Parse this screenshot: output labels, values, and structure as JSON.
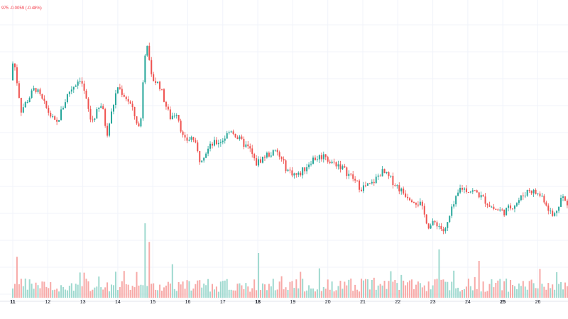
{
  "header": {
    "change_text": "975 -0.0059 (-0.48%)"
  },
  "colors": {
    "up": "#26a69a",
    "down": "#ef5350",
    "volume_up": "#9fd9cf",
    "volume_down": "#f7a9a7",
    "grid": "#f0f3fa",
    "text": "#131722",
    "change": "#f23645"
  },
  "chart_data": {
    "type": "candlestick",
    "title": "",
    "xlabel": "",
    "ylabel": "",
    "x_ticks": [
      "11",
      "12",
      "13",
      "14",
      "15",
      "16",
      "17",
      "18",
      "19",
      "20",
      "21",
      "22",
      "23",
      "24",
      "25",
      "26"
    ],
    "bold_ticks": [
      "11",
      "18",
      "25"
    ],
    "grid": true,
    "price_path_keypoints": [
      [
        0,
        0.7
      ],
      [
        0.08,
        0.85
      ],
      [
        0.3,
        0.5
      ],
      [
        0.7,
        0.65
      ],
      [
        1.05,
        0.5
      ],
      [
        1.3,
        0.4
      ],
      [
        1.65,
        0.62
      ],
      [
        2.0,
        0.72
      ],
      [
        2.3,
        0.42
      ],
      [
        2.6,
        0.54
      ],
      [
        2.75,
        0.34
      ],
      [
        3.05,
        0.66
      ],
      [
        3.4,
        0.55
      ],
      [
        3.7,
        0.36
      ],
      [
        3.82,
        0.87
      ],
      [
        3.9,
        0.95
      ],
      [
        4.0,
        0.72
      ],
      [
        4.25,
        0.67
      ],
      [
        4.45,
        0.52
      ],
      [
        4.55,
        0.45
      ],
      [
        4.75,
        0.49
      ],
      [
        4.95,
        0.29
      ],
      [
        5.2,
        0.32
      ],
      [
        5.4,
        0.17
      ],
      [
        5.75,
        0.27
      ],
      [
        6.05,
        0.3
      ],
      [
        6.3,
        0.37
      ],
      [
        6.5,
        0.31
      ],
      [
        6.85,
        0.23
      ],
      [
        7.0,
        0.14
      ],
      [
        7.3,
        0.2
      ],
      [
        7.6,
        0.22
      ],
      [
        7.9,
        0.1
      ],
      [
        8.2,
        0.06
      ],
      [
        8.4,
        0.11
      ],
      [
        8.6,
        0.17
      ],
      [
        9.0,
        0.2
      ],
      [
        9.1,
        0.15
      ],
      [
        9.35,
        0.14
      ],
      [
        9.75,
        0.05
      ],
      [
        10.0,
        -0.02
      ],
      [
        10.3,
        0.0
      ],
      [
        10.6,
        0.09
      ],
      [
        10.85,
        0.04
      ],
      [
        11.2,
        -0.05
      ],
      [
        11.7,
        -0.13
      ],
      [
        11.95,
        -0.28
      ],
      [
        12.15,
        -0.25
      ],
      [
        12.4,
        -0.32
      ],
      [
        12.6,
        -0.17
      ],
      [
        12.85,
        -0.02
      ],
      [
        13.3,
        -0.05
      ],
      [
        13.8,
        -0.16
      ],
      [
        14.1,
        -0.18
      ],
      [
        14.45,
        -0.12
      ],
      [
        14.8,
        -0.03
      ],
      [
        15.2,
        -0.08
      ],
      [
        15.5,
        -0.22
      ],
      [
        15.75,
        -0.07
      ],
      [
        16.0,
        -0.19
      ]
    ],
    "volume_spikes": [
      {
        "day": 3.8,
        "value": 1.0
      },
      {
        "day": 3.9,
        "value": 0.75
      },
      {
        "day": 7.0,
        "value": 0.6
      },
      {
        "day": 12.2,
        "value": 0.65
      },
      {
        "day": 0.1,
        "value": 0.55
      },
      {
        "day": 4.55,
        "value": 0.45
      }
    ]
  }
}
